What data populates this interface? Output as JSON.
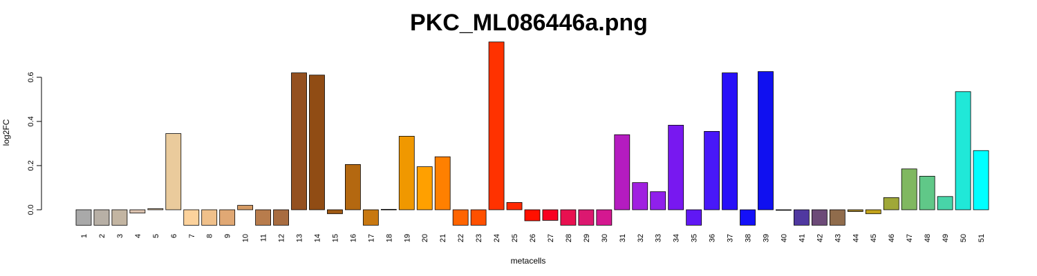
{
  "chart_data": {
    "type": "bar",
    "title": "PKC_ML086446a.png",
    "xlabel": "metacells",
    "ylabel": "log2FC",
    "ylim": [
      -0.07,
      0.76
    ],
    "yticks": [
      "0.0",
      "0.2",
      "0.4",
      "0.6"
    ],
    "ytick_values": [
      0.0,
      0.2,
      0.4,
      0.6
    ],
    "grid": false,
    "categories": [
      "1",
      "2",
      "3",
      "4",
      "5",
      "6",
      "7",
      "8",
      "9",
      "10",
      "11",
      "12",
      "13",
      "14",
      "15",
      "16",
      "17",
      "18",
      "19",
      "20",
      "21",
      "22",
      "23",
      "24",
      "25",
      "26",
      "27",
      "28",
      "29",
      "30",
      "31",
      "32",
      "33",
      "34",
      "35",
      "36",
      "37",
      "38",
      "39",
      "40",
      "41",
      "42",
      "43",
      "44",
      "45",
      "46",
      "47",
      "48",
      "49",
      "50",
      "51"
    ],
    "values": [
      -0.07,
      -0.07,
      -0.07,
      -0.015,
      0.005,
      0.345,
      -0.07,
      -0.07,
      -0.07,
      0.02,
      -0.07,
      -0.07,
      0.62,
      0.61,
      -0.018,
      0.205,
      -0.07,
      0.002,
      0.333,
      0.195,
      0.24,
      -0.07,
      -0.07,
      0.76,
      0.033,
      -0.05,
      -0.048,
      -0.07,
      -0.07,
      -0.07,
      0.34,
      0.123,
      0.082,
      0.383,
      -0.07,
      0.355,
      0.62,
      -0.07,
      0.626,
      -0.002,
      -0.07,
      -0.07,
      -0.07,
      -0.008,
      -0.018,
      0.055,
      0.185,
      0.152,
      0.06,
      0.535,
      0.268
    ],
    "colors": [
      "#a9a9a9",
      "#b8b0a6",
      "#c3b5a2",
      "#dcc3b0",
      "#e6cba6",
      "#eacb9c",
      "#fcd29c",
      "#f0c08a",
      "#e0a874",
      "#d49a64",
      "#b87c4c",
      "#a86c40",
      "#945020",
      "#904c14",
      "#a05a14",
      "#b46810",
      "#c87810",
      "#de8a08",
      "#f09800",
      "#ffa000",
      "#ff8000",
      "#ff6400",
      "#ff5000",
      "#ff3200",
      "#ff2800",
      "#ff1000",
      "#f80020",
      "#e81050",
      "#dc1870",
      "#d41890",
      "#b41cc0",
      "#a020e0",
      "#9020ec",
      "#7818f0",
      "#6018f4",
      "#4818f8",
      "#2810f8",
      "#1410f8",
      "#1010f0",
      "#304090",
      "#5038a0",
      "#6c4a78",
      "#906c4c",
      "#a4842c",
      "#c4a41c",
      "#a0a838",
      "#80b860",
      "#60c888",
      "#48d4a8",
      "#20e8d8",
      "#00ffff"
    ]
  }
}
